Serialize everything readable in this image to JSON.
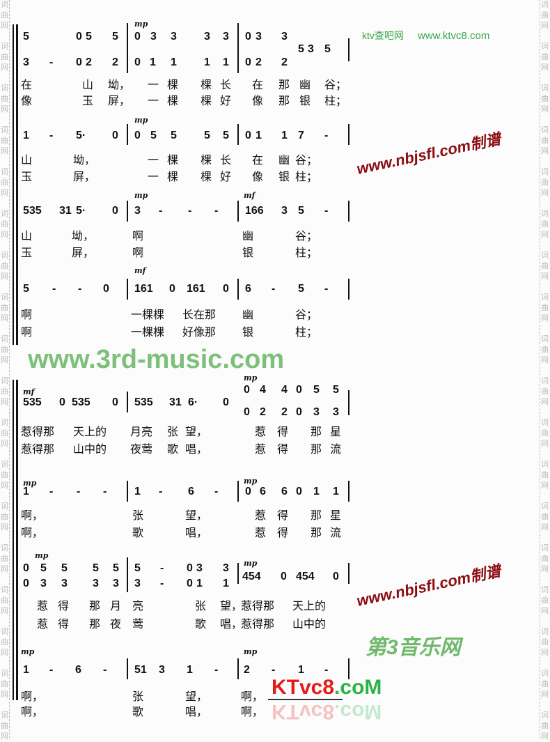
{
  "watermarks": {
    "ktv_cha": "ktv查吧网",
    "ktvc8_url": "www.ktvc8.com",
    "nbjsfl": "www.nbjsfl.com制谱",
    "third_music": "www.3rd-music.com",
    "third_music_cn": "第3音乐网",
    "ktvc8_logo_red": "KTvc8",
    "ktvc8_logo_green": ".coM",
    "side": "词曲网",
    "colors": {
      "green": "#3aa84a",
      "red": "#8b0d10",
      "logo_red": "#e21b1b"
    }
  },
  "dynamics": [
    "mp",
    "mp",
    "mp",
    "mf",
    "mf",
    "mf",
    "mp",
    "mp",
    "mp",
    "mp",
    "mp",
    "mp",
    "mp"
  ],
  "rows": {
    "r1": [
      "5",
      "0",
      "5",
      "5",
      "0",
      "3",
      "3",
      "3",
      "3",
      "0",
      "3",
      "3"
    ],
    "r1b": [
      "5",
      "3",
      "5"
    ],
    "r2": [
      "3",
      "-",
      "0",
      "2",
      "2",
      "0",
      "1",
      "1",
      "1",
      "1",
      "0",
      "2",
      "2"
    ],
    "l1": [
      "在",
      "山",
      "坳，",
      "一",
      "棵",
      "棵",
      "长",
      "在",
      "那",
      "幽",
      "谷；"
    ],
    "l2": [
      "像",
      "玉",
      "屏，",
      "一",
      "棵",
      "棵",
      "好",
      "像",
      "那",
      "银",
      "柱；"
    ],
    "r3": [
      "1",
      "-",
      "5·",
      "0",
      "0",
      "5",
      "5",
      "5",
      "5",
      "0",
      "1",
      "1",
      "7",
      "-"
    ],
    "l3": [
      "山",
      "坳，",
      "一",
      "棵",
      "棵",
      "长",
      "在",
      "幽",
      "谷；"
    ],
    "l4": [
      "玉",
      "屏，",
      "一",
      "棵",
      "棵",
      "好",
      "像",
      "银",
      "柱；"
    ],
    "r4": [
      "535",
      "31",
      "5·",
      "0",
      "3",
      "-",
      "-",
      "-",
      "166",
      "3",
      "5",
      "-"
    ],
    "l5": [
      "山",
      "坳，",
      "啊",
      "幽",
      "谷；"
    ],
    "l6": [
      "玉",
      "屏，",
      "啊",
      "银",
      "柱；"
    ],
    "r5": [
      "5",
      "-",
      "-",
      "0",
      "161",
      "0",
      "161",
      "0",
      "6",
      "-",
      "5",
      "-"
    ],
    "l7": [
      "啊",
      "一棵棵",
      "长在那",
      "幽",
      "谷；"
    ],
    "l8": [
      "啊",
      "一棵棵",
      "好像那",
      "银",
      "柱；"
    ],
    "r6": [
      "535",
      "0",
      "535",
      "0",
      "535",
      "31",
      "6·",
      "0"
    ],
    "r6u": [
      "0",
      "4",
      "4",
      "0",
      "5",
      "5"
    ],
    "r6d": [
      "0",
      "2",
      "2",
      "0",
      "3",
      "3"
    ],
    "l9": [
      "惹得那",
      "天上的",
      "月亮",
      "张",
      "望，",
      "惹",
      "得",
      "那",
      "星"
    ],
    "l10": [
      "惹得那",
      "山中的",
      "夜莺",
      "歌",
      "唱，",
      "惹",
      "得",
      "那",
      "流"
    ],
    "r7": [
      "1",
      "-",
      "-",
      "-",
      "1",
      "-",
      "6",
      "-",
      "0",
      "6",
      "6",
      "0",
      "1",
      "1"
    ],
    "l11": [
      "啊，",
      "张",
      "望，",
      "惹",
      "得",
      "那",
      "星"
    ],
    "l12": [
      "啊，",
      "歌",
      "唱，",
      "惹",
      "得",
      "那",
      "流"
    ],
    "r8u": [
      "0",
      "5",
      "5",
      "5",
      "5",
      "5",
      "-",
      "0",
      "3",
      "3"
    ],
    "r8d": [
      "0",
      "3",
      "3",
      "3",
      "3",
      "3",
      "-",
      "0",
      "1",
      "1"
    ],
    "r8r": [
      "454",
      "0",
      "454",
      "0"
    ],
    "l13": [
      "惹",
      "得",
      "那",
      "月",
      "亮",
      "张",
      "望，",
      "惹得那",
      "天上的"
    ],
    "l14": [
      "惹",
      "得",
      "那",
      "夜",
      "莺",
      "歌",
      "唱，",
      "惹得那",
      "山中的"
    ],
    "r9": [
      "1",
      "-",
      "6",
      "-",
      "51",
      "3",
      "1",
      "-",
      "2",
      "-",
      "1",
      "-"
    ],
    "l15": [
      "啊，",
      "张",
      "望，",
      "啊，"
    ],
    "l16": [
      "啊，",
      "歌",
      "唱，",
      "啊，"
    ]
  }
}
